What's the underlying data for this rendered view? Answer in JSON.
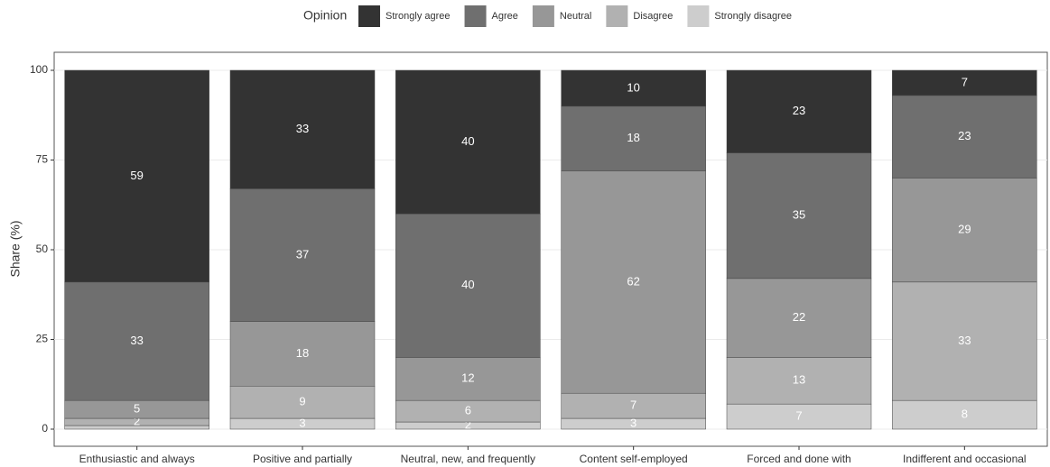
{
  "chart_data": {
    "type": "stacked-bar",
    "legend_title": "Opinion",
    "ylabel": "Share (%)",
    "categories": [
      "Enthusiastic and always",
      "Positive and partially",
      "Neutral, new, and frequently",
      "Content self-employed",
      "Forced and done with",
      "Indifferent and occasional"
    ],
    "series": [
      {
        "name": "Strongly agree",
        "color": "#333333",
        "values": [
          59,
          33,
          40,
          10,
          23,
          7
        ],
        "value_labels": [
          "59",
          "33",
          "40",
          "10",
          "23",
          "7"
        ]
      },
      {
        "name": "Agree",
        "color": "#6f6f6f",
        "values": [
          33,
          37,
          40,
          18,
          35,
          23
        ],
        "value_labels": [
          "33",
          "37",
          "40",
          "18",
          "35",
          "23"
        ]
      },
      {
        "name": "Neutral",
        "color": "#979797",
        "values": [
          5,
          18,
          12,
          62,
          22,
          29
        ],
        "value_labels": [
          "5",
          "18",
          "12",
          "62",
          "22",
          "29"
        ]
      },
      {
        "name": "Disagree",
        "color": "#b1b1b1",
        "values": [
          2,
          9,
          6,
          7,
          13,
          33
        ],
        "value_labels": [
          "2",
          "9",
          "6",
          "7",
          "13",
          "33"
        ]
      },
      {
        "name": "Strongly disagree",
        "color": "#cdcdcd",
        "values": [
          1,
          3,
          2,
          3,
          7,
          8
        ],
        "value_labels": [
          null,
          "3",
          "2",
          "3",
          "7",
          "8"
        ]
      }
    ],
    "ylim": [
      0,
      100
    ],
    "yticks": [
      0,
      25,
      50,
      75,
      100
    ],
    "grid": true,
    "legend": "top"
  }
}
